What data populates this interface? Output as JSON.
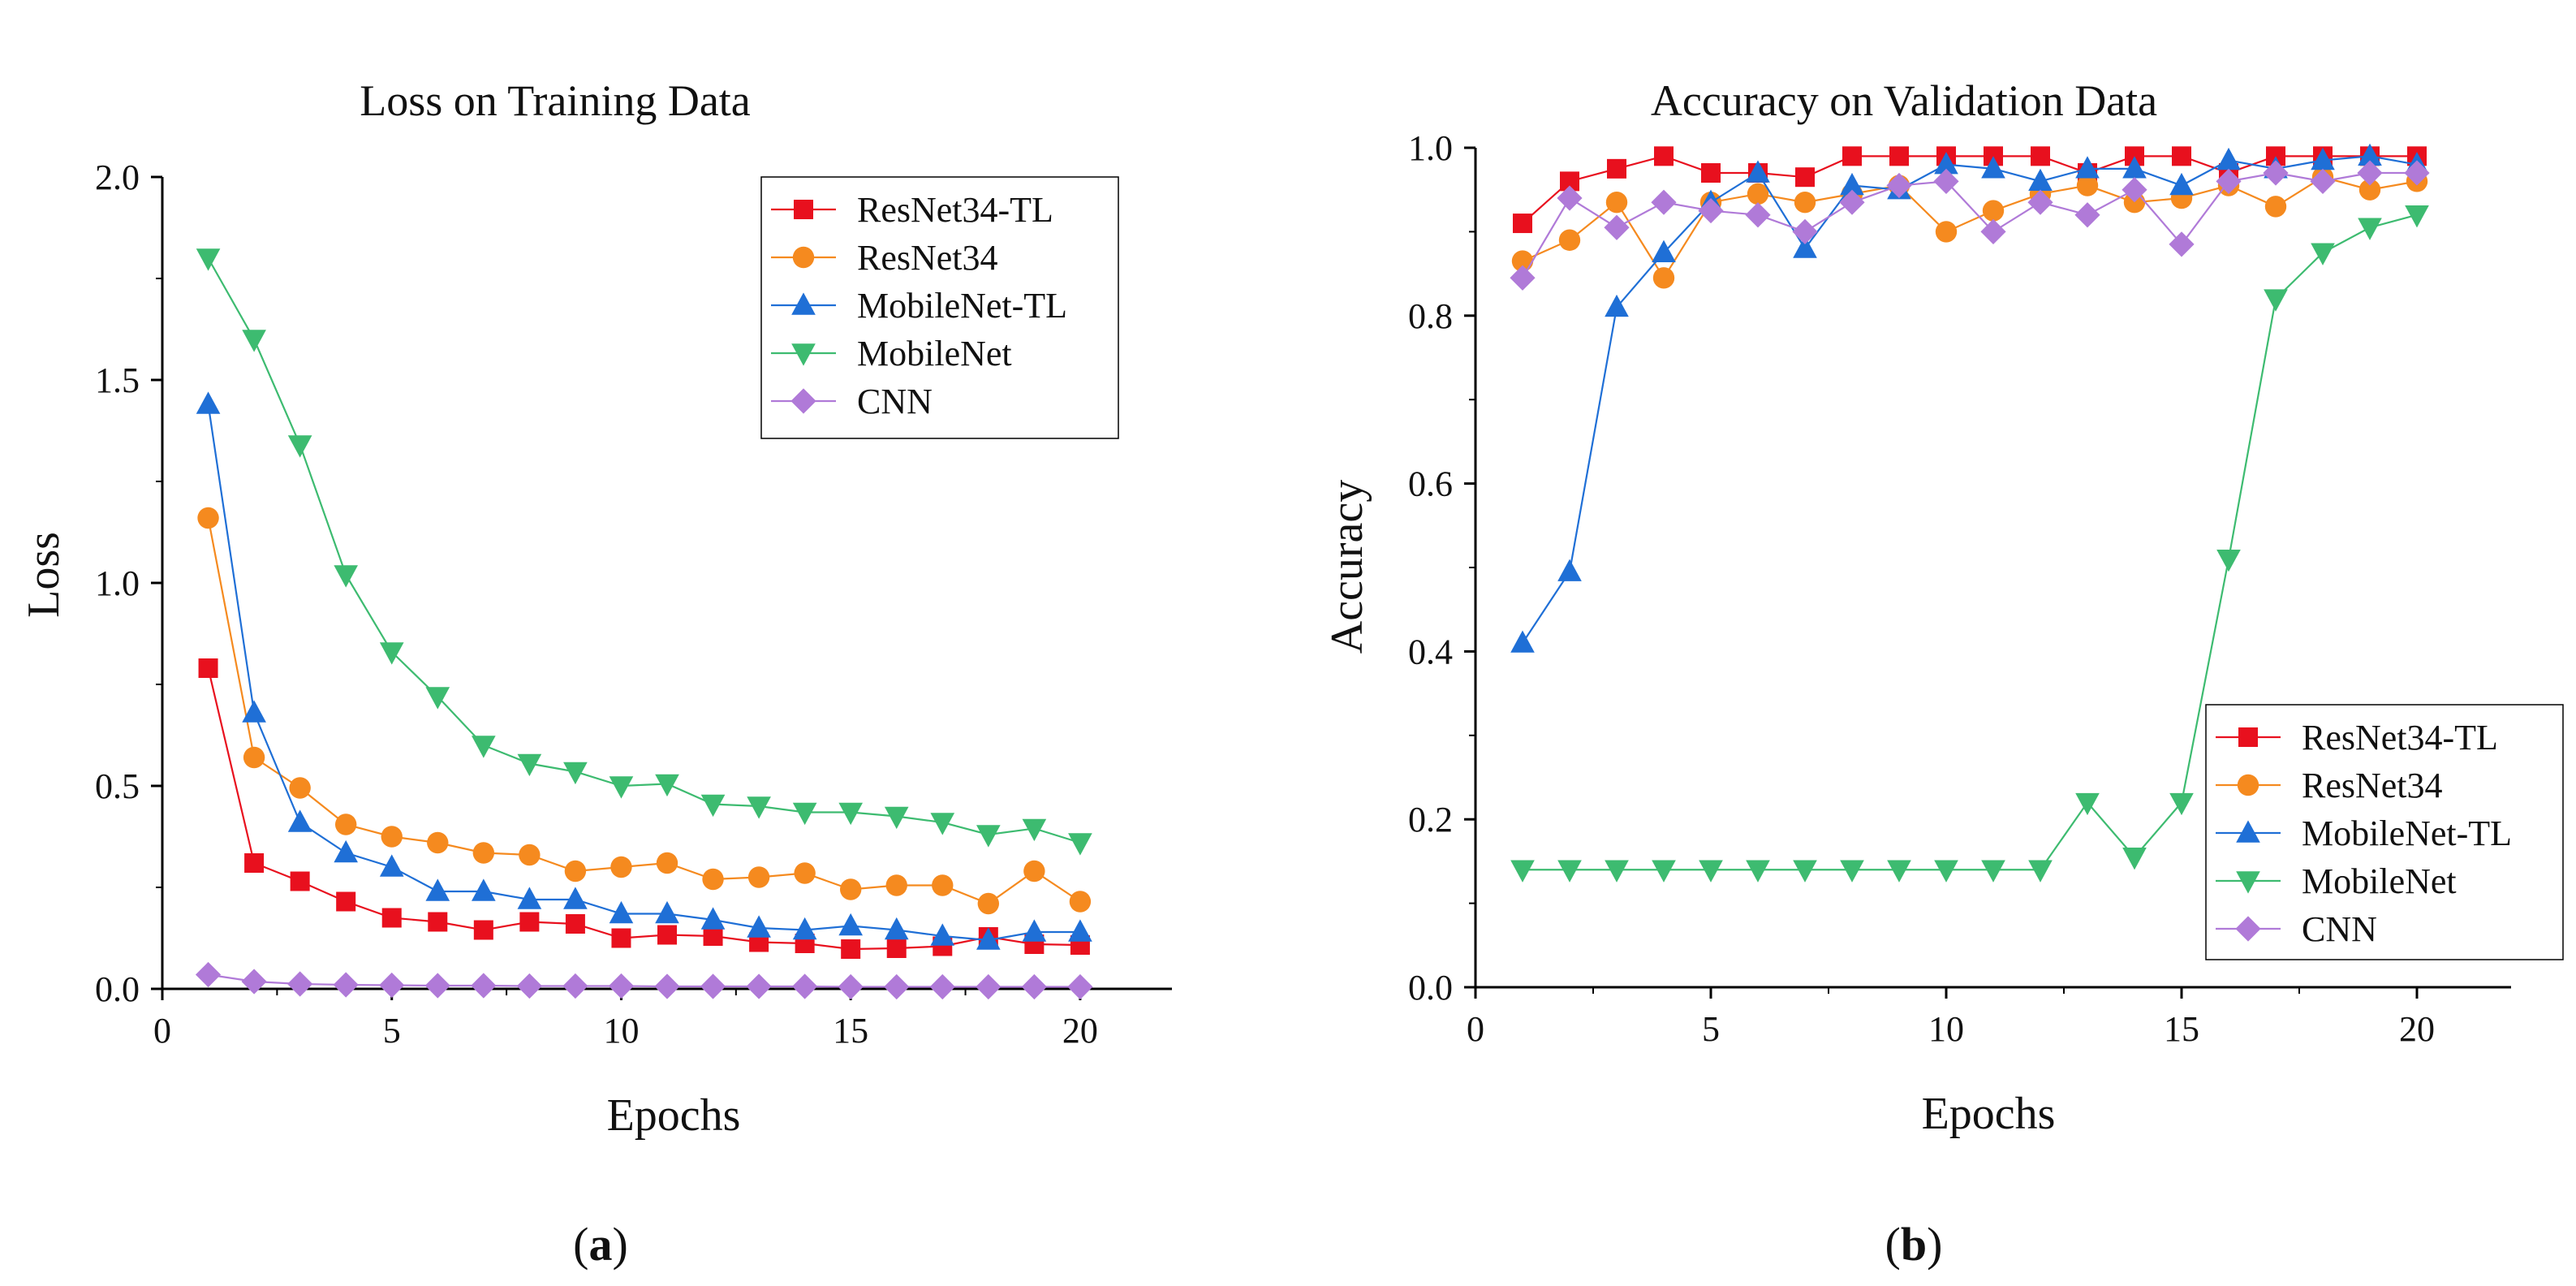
{
  "colors": {
    "ResNet34-TL": "#e8101e",
    "ResNet34": "#f58a1f",
    "MobileNet-TL": "#1f6fd6",
    "MobileNet": "#3dbb70",
    "CNN": "#b07ad8"
  },
  "markers": {
    "ResNet34-TL": "square",
    "ResNet34": "circle",
    "MobileNet-TL": "triangle-up",
    "MobileNet": "triangle-down",
    "CNN": "diamond"
  },
  "chart_data": [
    {
      "type": "line",
      "label": "(a)",
      "label_letter": "a",
      "title": "Loss on Training Data",
      "xlabel": "Epochs",
      "ylabel": "Loss",
      "xlim": [
        0,
        22
      ],
      "ylim": [
        0,
        2.0
      ],
      "xticks": [
        0,
        5,
        10,
        15,
        20
      ],
      "yticks": [
        0.0,
        0.5,
        1.0,
        1.5,
        2.0
      ],
      "xtick_labels": [
        "0",
        "5",
        "10",
        "15",
        "20"
      ],
      "ytick_labels": [
        "0.0",
        "0.5",
        "1.0",
        "1.5",
        "2.0"
      ],
      "legend_position": "top-right",
      "x": [
        1,
        2,
        3,
        4,
        5,
        6,
        7,
        8,
        9,
        10,
        11,
        12,
        13,
        14,
        15,
        16,
        17,
        18,
        19,
        20
      ],
      "series": [
        {
          "name": "ResNet34-TL",
          "values": [
            0.79,
            0.31,
            0.265,
            0.215,
            0.175,
            0.165,
            0.145,
            0.165,
            0.16,
            0.125,
            0.133,
            0.13,
            0.115,
            0.112,
            0.098,
            0.1,
            0.105,
            0.128,
            0.11,
            0.108
          ]
        },
        {
          "name": "ResNet34",
          "values": [
            1.16,
            0.57,
            0.495,
            0.405,
            0.375,
            0.36,
            0.335,
            0.33,
            0.29,
            0.3,
            0.31,
            0.27,
            0.275,
            0.285,
            0.245,
            0.255,
            0.255,
            0.21,
            0.29,
            0.215
          ]
        },
        {
          "name": "MobileNet-TL",
          "values": [
            1.44,
            0.68,
            0.41,
            0.335,
            0.3,
            0.24,
            0.24,
            0.22,
            0.22,
            0.185,
            0.185,
            0.17,
            0.15,
            0.145,
            0.155,
            0.145,
            0.13,
            0.12,
            0.14,
            0.14
          ]
        },
        {
          "name": "MobileNet",
          "values": [
            1.8,
            1.6,
            1.34,
            1.02,
            0.83,
            0.72,
            0.6,
            0.555,
            0.535,
            0.5,
            0.505,
            0.455,
            0.45,
            0.435,
            0.435,
            0.425,
            0.41,
            0.38,
            0.395,
            0.36
          ]
        },
        {
          "name": "CNN",
          "values": [
            0.035,
            0.018,
            0.012,
            0.01,
            0.009,
            0.008,
            0.008,
            0.007,
            0.007,
            0.007,
            0.006,
            0.006,
            0.006,
            0.006,
            0.005,
            0.005,
            0.005,
            0.005,
            0.005,
            0.005
          ]
        }
      ]
    },
    {
      "type": "line",
      "label": "(b)",
      "label_letter": "b",
      "title": "Accuracy on Validation Data",
      "xlabel": "Epochs",
      "ylabel": "Accuracy",
      "xlim": [
        0,
        22
      ],
      "ylim": [
        0,
        1.0
      ],
      "xticks": [
        0,
        5,
        10,
        15,
        20
      ],
      "yticks": [
        0.0,
        0.2,
        0.4,
        0.6,
        0.8,
        1.0
      ],
      "xtick_labels": [
        "0",
        "5",
        "10",
        "15",
        "20"
      ],
      "ytick_labels": [
        "0.0",
        "0.2",
        "0.4",
        "0.6",
        "0.8",
        "1.0"
      ],
      "legend_position": "bottom-right",
      "x": [
        1,
        2,
        3,
        4,
        5,
        6,
        7,
        8,
        9,
        10,
        11,
        12,
        13,
        14,
        15,
        16,
        17,
        18,
        19,
        20
      ],
      "series": [
        {
          "name": "ResNet34-TL",
          "values": [
            0.91,
            0.96,
            0.975,
            0.99,
            0.97,
            0.97,
            0.965,
            0.99,
            0.99,
            0.99,
            0.99,
            0.99,
            0.97,
            0.99,
            0.99,
            0.97,
            0.99,
            0.99,
            0.99,
            0.99
          ]
        },
        {
          "name": "ResNet34",
          "values": [
            0.865,
            0.89,
            0.935,
            0.845,
            0.935,
            0.945,
            0.935,
            0.945,
            0.955,
            0.9,
            0.925,
            0.945,
            0.955,
            0.935,
            0.94,
            0.955,
            0.93,
            0.965,
            0.95,
            0.96
          ]
        },
        {
          "name": "MobileNet-TL",
          "values": [
            0.41,
            0.495,
            0.81,
            0.875,
            0.935,
            0.97,
            0.88,
            0.955,
            0.95,
            0.98,
            0.975,
            0.96,
            0.975,
            0.975,
            0.955,
            0.985,
            0.975,
            0.985,
            0.99,
            0.98
          ]
        },
        {
          "name": "MobileNet",
          "values": [
            0.14,
            0.14,
            0.14,
            0.14,
            0.14,
            0.14,
            0.14,
            0.14,
            0.14,
            0.14,
            0.14,
            0.14,
            0.22,
            0.155,
            0.22,
            0.51,
            0.82,
            0.875,
            0.905,
            0.92
          ]
        },
        {
          "name": "CNN",
          "values": [
            0.845,
            0.94,
            0.905,
            0.935,
            0.925,
            0.92,
            0.9,
            0.935,
            0.955,
            0.96,
            0.9,
            0.935,
            0.92,
            0.95,
            0.885,
            0.96,
            0.97,
            0.96,
            0.97,
            0.97
          ]
        }
      ]
    }
  ]
}
